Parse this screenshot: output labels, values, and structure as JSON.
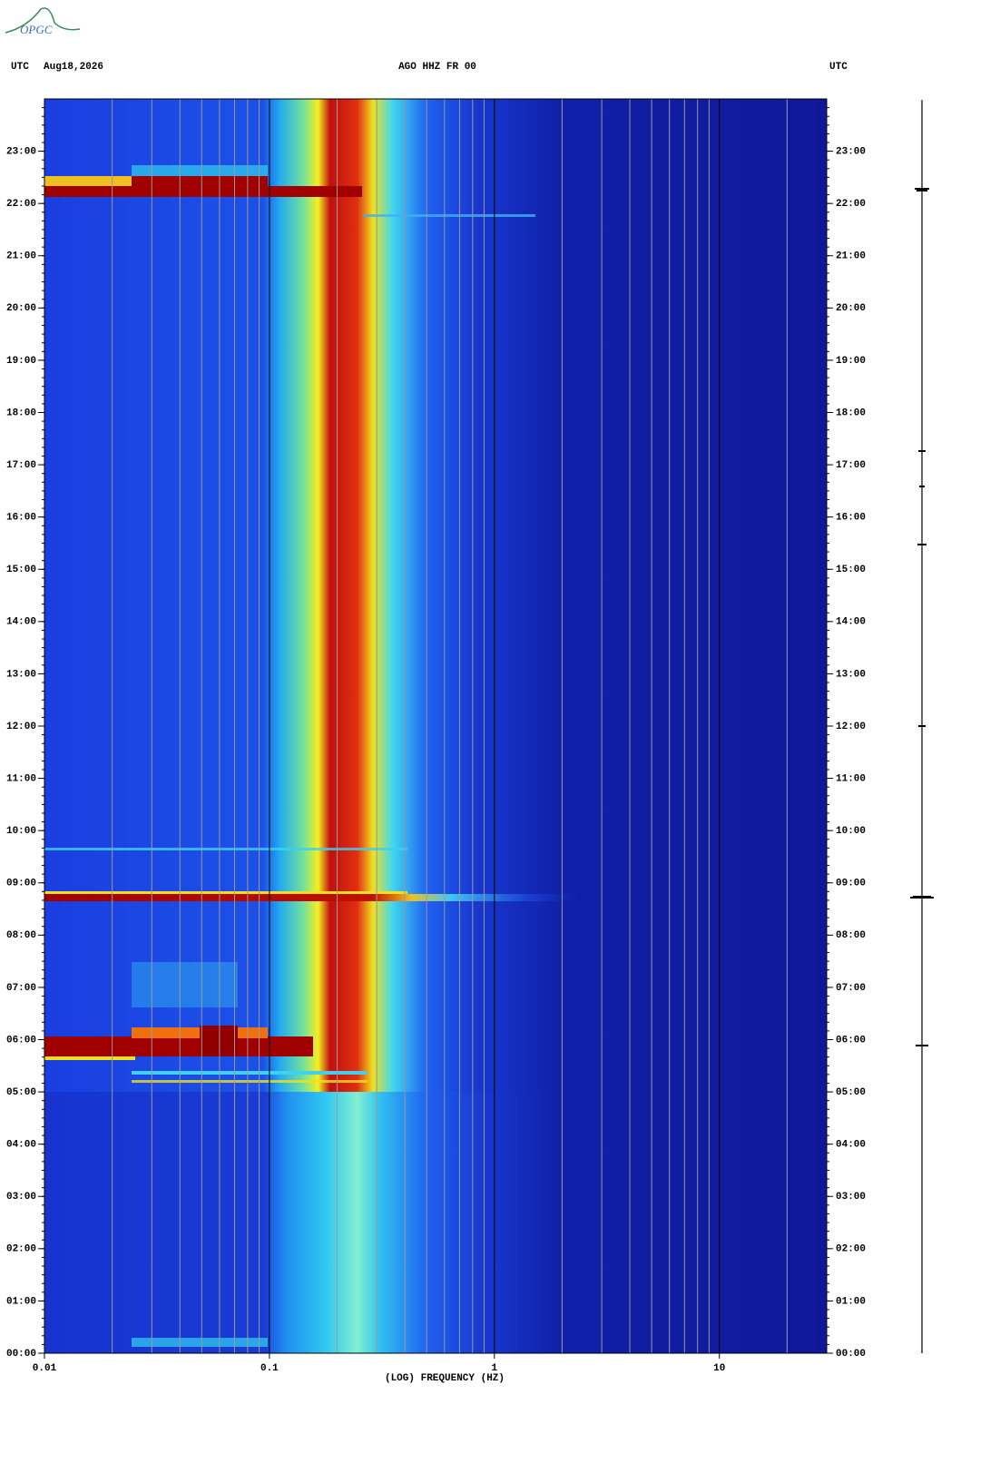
{
  "chart_data": {
    "type": "spectrogram",
    "logo": "OPGC",
    "left_header": "UTC",
    "date": "Aug18,2026",
    "title": "AGO HHZ FR 00",
    "right_header": "UTC",
    "x_label": "(LOG) FREQUENCY (HZ)",
    "xscale": "log",
    "xlim": [
      0.01,
      30
    ],
    "xticks": [
      0.01,
      0.1,
      1,
      10
    ],
    "ylim": [
      0,
      24
    ],
    "yticks": [
      {
        "value": 0,
        "label": "00:00"
      },
      {
        "value": 1,
        "label": "01:00"
      },
      {
        "value": 2,
        "label": "02:00"
      },
      {
        "value": 3,
        "label": "03:00"
      },
      {
        "value": 4,
        "label": "04:00"
      },
      {
        "value": 5,
        "label": "05:00"
      },
      {
        "value": 6,
        "label": "06:00"
      },
      {
        "value": 7,
        "label": "07:00"
      },
      {
        "value": 8,
        "label": "08:00"
      },
      {
        "value": 9,
        "label": "09:00"
      },
      {
        "value": 10,
        "label": "10:00"
      },
      {
        "value": 11,
        "label": "11:00"
      },
      {
        "value": 12,
        "label": "12:00"
      },
      {
        "value": 13,
        "label": "13:00"
      },
      {
        "value": 14,
        "label": "14:00"
      },
      {
        "value": 15,
        "label": "15:00"
      },
      {
        "value": 16,
        "label": "16:00"
      },
      {
        "value": 17,
        "label": "17:00"
      },
      {
        "value": 18,
        "label": "18:00"
      },
      {
        "value": 19,
        "label": "19:00"
      },
      {
        "value": 20,
        "label": "20:00"
      },
      {
        "value": 21,
        "label": "21:00"
      },
      {
        "value": 22,
        "label": "22:00"
      },
      {
        "value": 23,
        "label": "23:00"
      }
    ]
  }
}
